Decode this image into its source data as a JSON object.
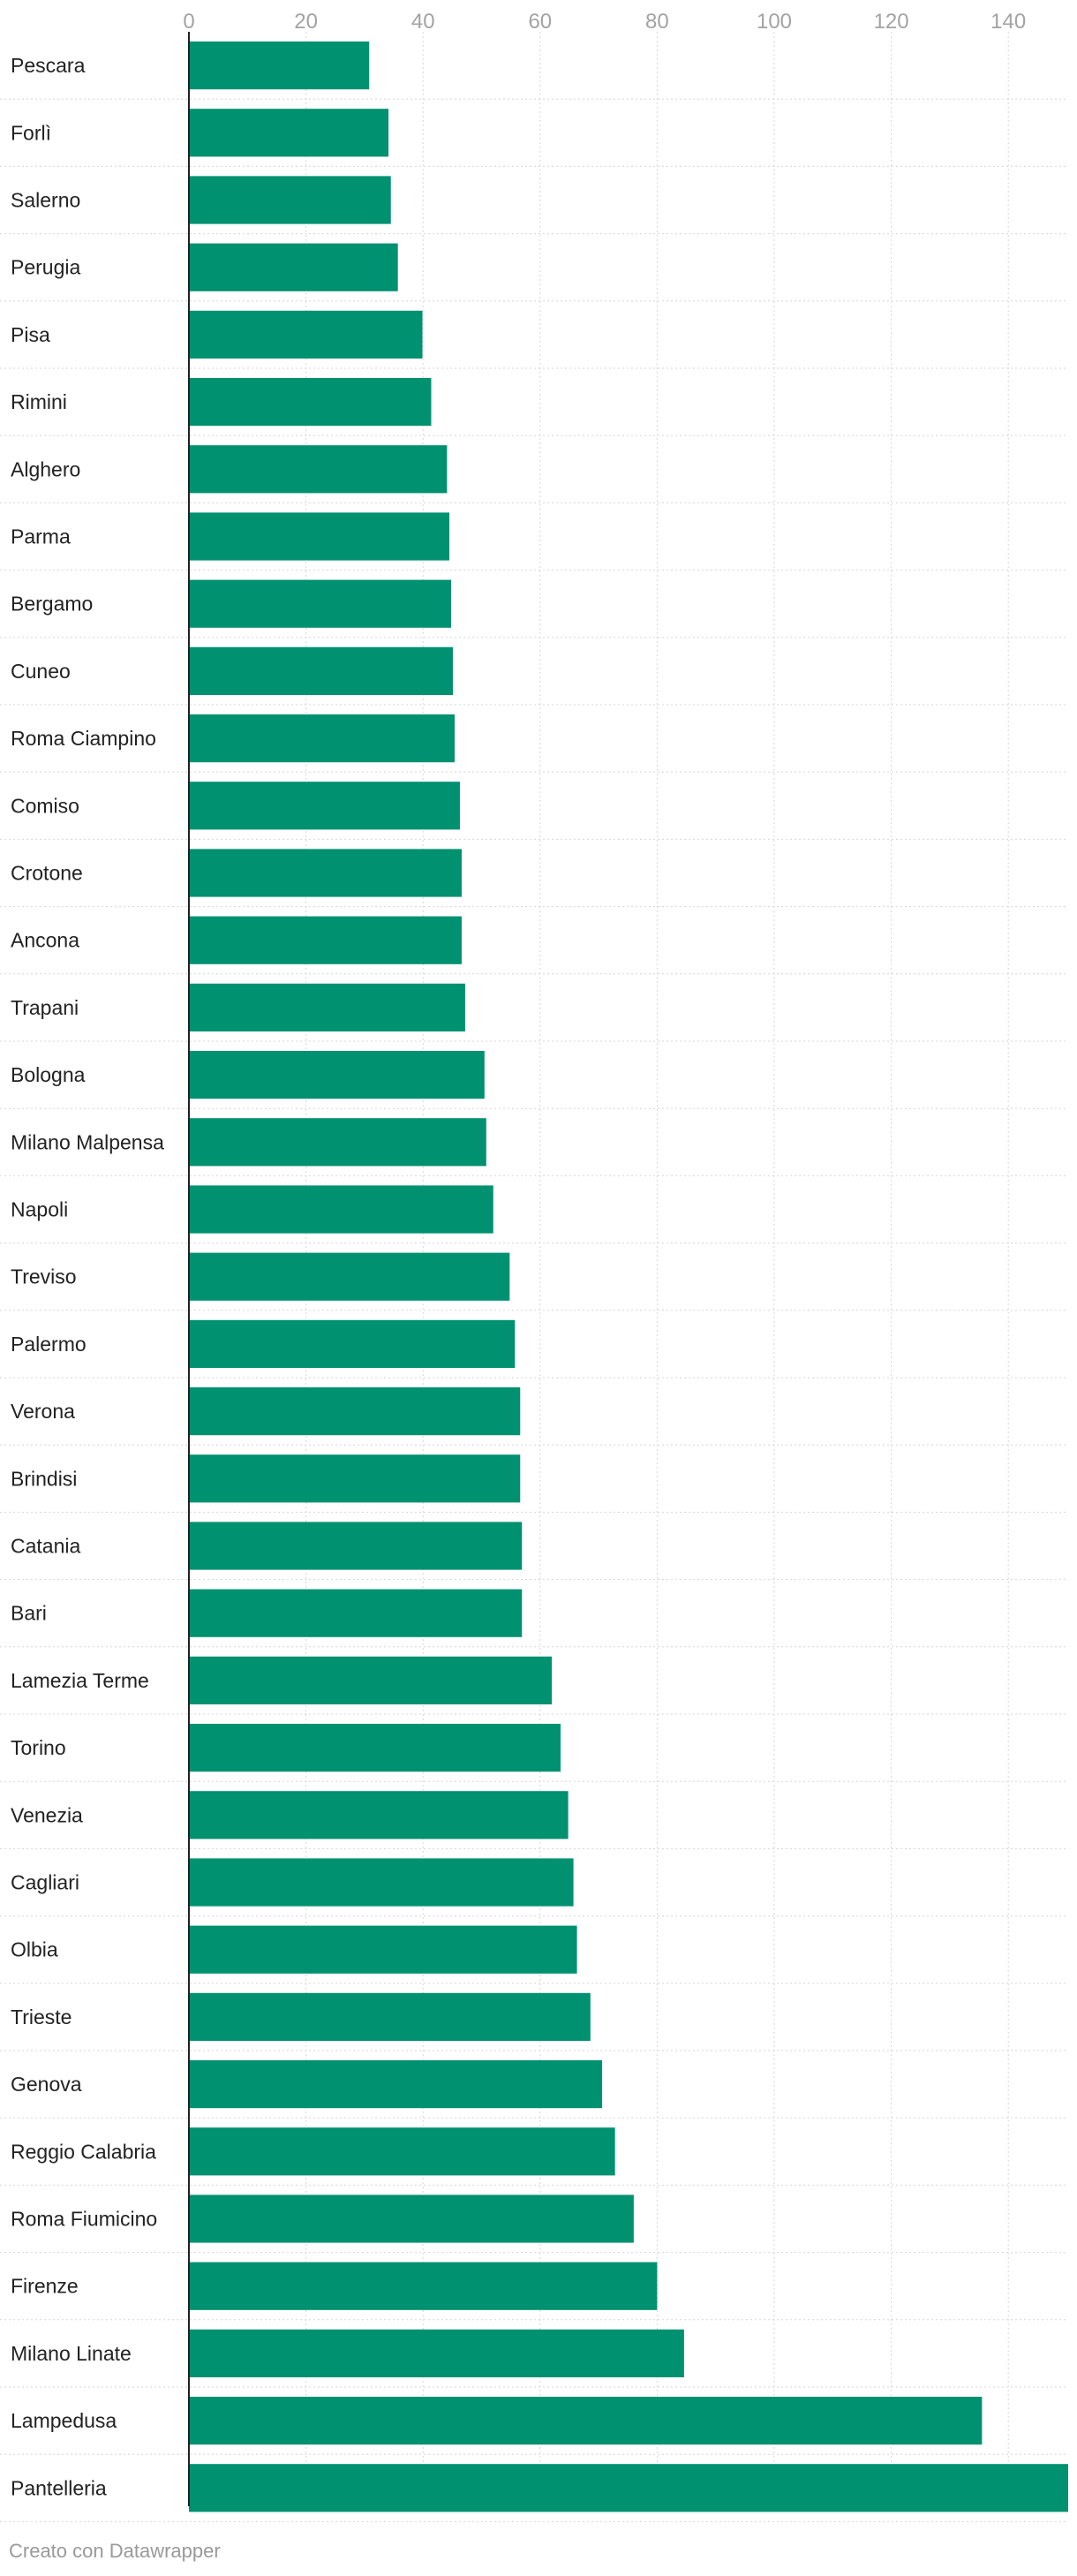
{
  "footer": "Creato con Datawrapper",
  "colors": {
    "bar": "#009170",
    "grid": "#d6d6d6",
    "tick_label": "#a3a3a3",
    "category_label": "#222222",
    "axis_line": "#222222"
  },
  "chart_data": {
    "type": "bar",
    "orientation": "horizontal",
    "title": "",
    "xlabel": "",
    "ylabel": "",
    "xlim": [
      0,
      150
    ],
    "x_ticks": [
      0,
      20,
      40,
      60,
      80,
      100,
      120,
      140
    ],
    "x_axis_position": "top",
    "grid": true,
    "categories": [
      "Pescara",
      "Forlì",
      "Salerno",
      "Perugia",
      "Pisa",
      "Rimini",
      "Alghero",
      "Parma",
      "Bergamo",
      "Cuneo",
      "Roma Ciampino",
      "Comiso",
      "Crotone",
      "Ancona",
      "Trapani",
      "Bologna",
      "Milano Malpensa",
      "Napoli",
      "Treviso",
      "Palermo",
      "Verona",
      "Brindisi",
      "Catania",
      "Bari",
      "Lamezia Terme",
      "Torino",
      "Venezia",
      "Cagliari",
      "Olbia",
      "Trieste",
      "Genova",
      "Reggio Calabria",
      "Roma Fiumicino",
      "Firenze",
      "Milano Linate",
      "Lampedusa",
      "Pantelleria"
    ],
    "values": [
      30.8,
      34.1,
      34.5,
      35.7,
      39.9,
      41.4,
      44.1,
      44.5,
      44.8,
      45.1,
      45.4,
      46.3,
      46.6,
      46.6,
      47.2,
      50.5,
      50.8,
      52.0,
      54.8,
      55.7,
      56.6,
      56.6,
      56.9,
      56.9,
      62.0,
      63.5,
      64.8,
      65.7,
      66.3,
      68.6,
      70.6,
      72.8,
      76.0,
      80.0,
      84.6,
      135.5,
      150.8
    ]
  }
}
